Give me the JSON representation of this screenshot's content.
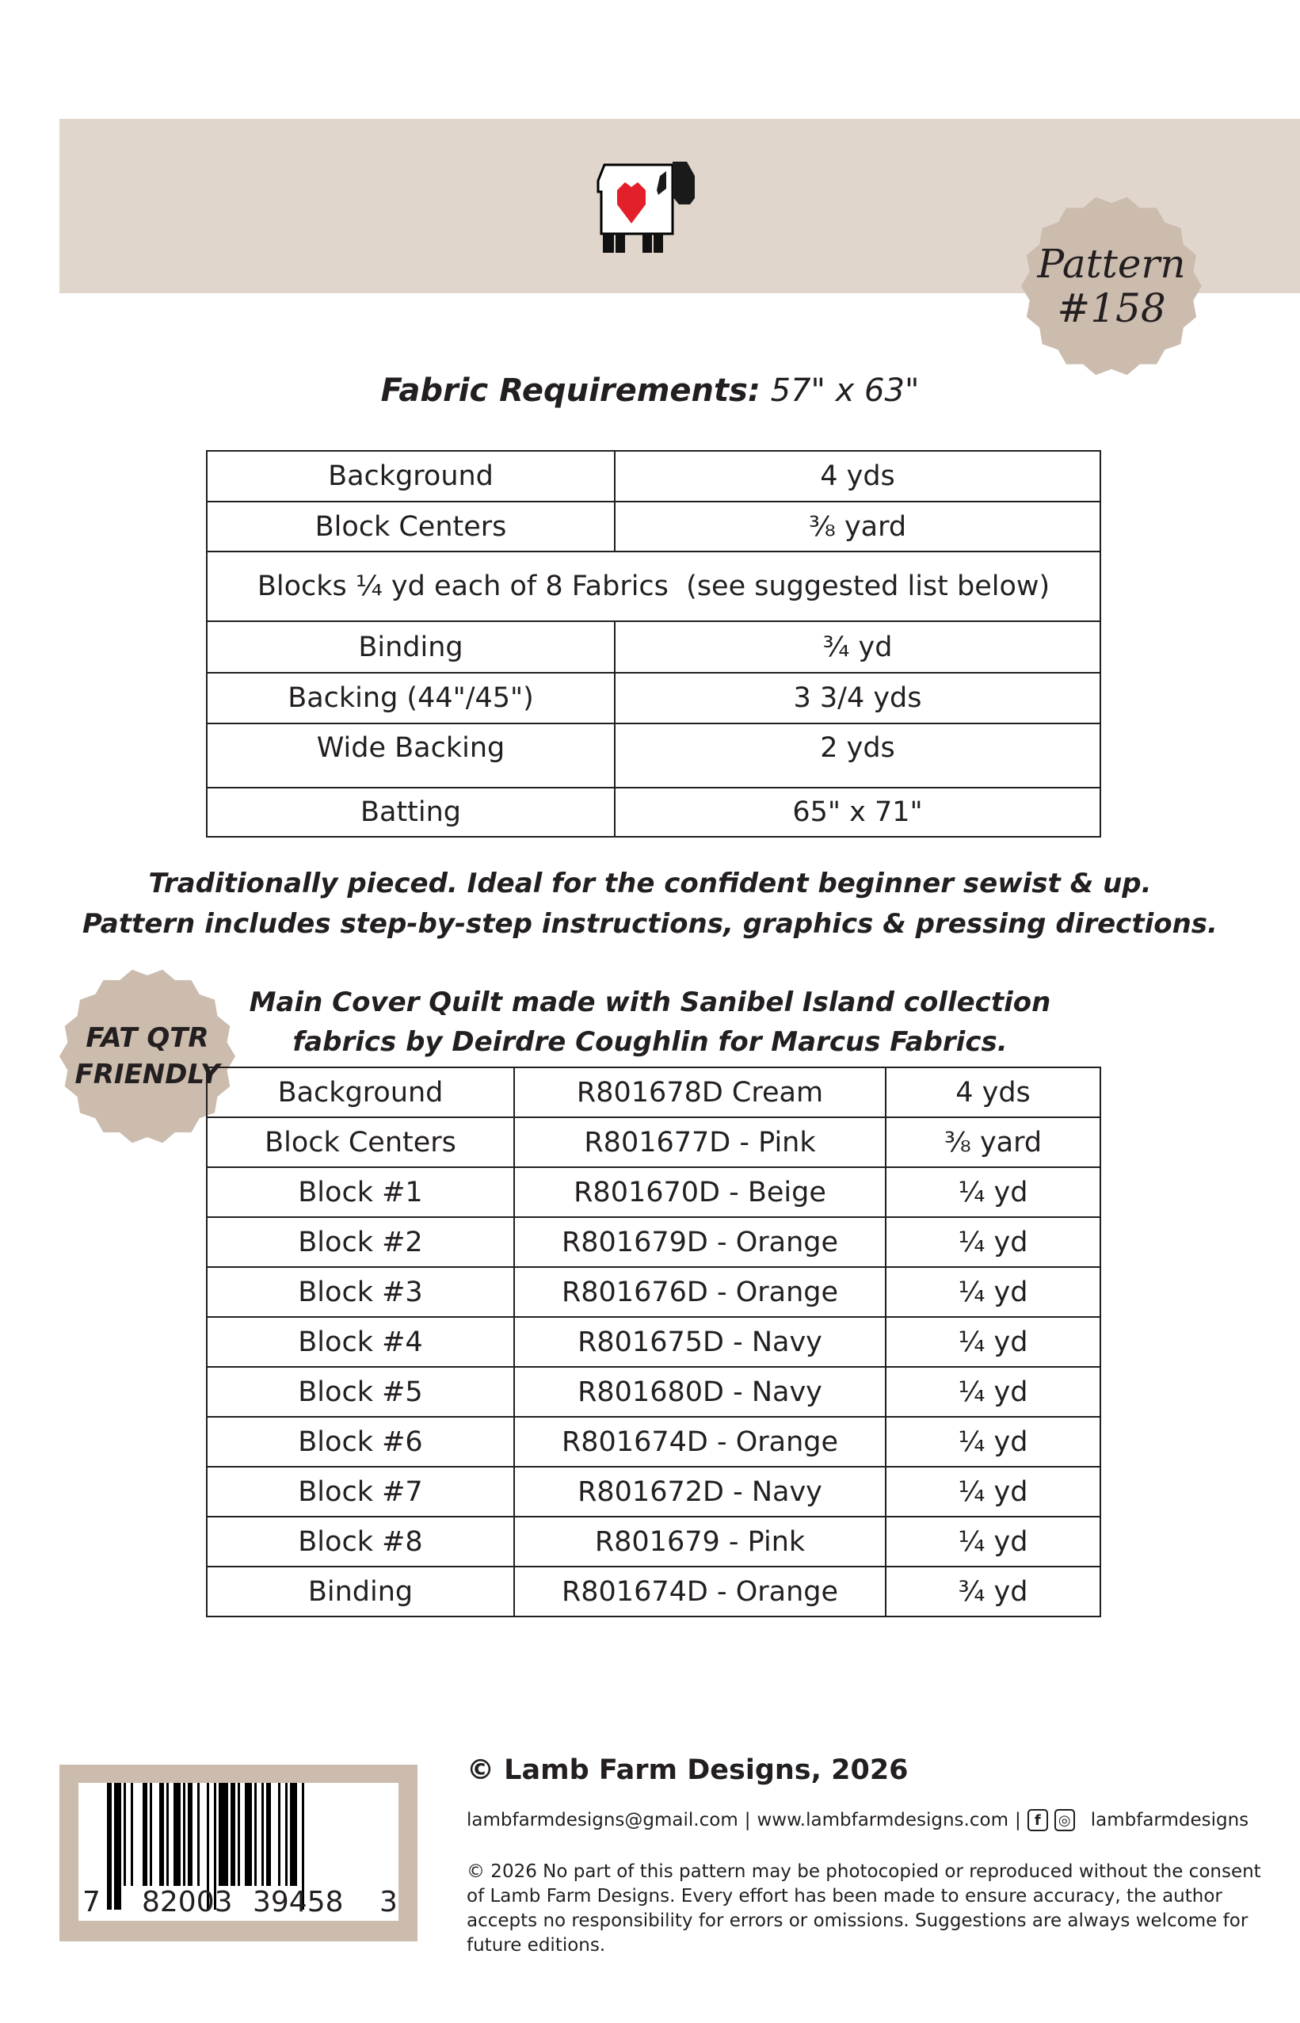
{
  "header": {
    "logo": "lamb-heart-logo",
    "badge_line1": "Pattern",
    "badge_line2": "#158"
  },
  "title": {
    "label": "Fabric Requirements:",
    "size": "57\" x 63\""
  },
  "requirements": [
    [
      "Background",
      "4 yds"
    ],
    [
      "Block Centers",
      "⅜ yard"
    ],
    [
      "Blocks ¼ yd each of 8 Fabrics  (see suggested list below)"
    ],
    [
      "Binding",
      "¾ yd"
    ],
    [
      "Backing (44\"/45\")",
      "3 3/4 yds"
    ],
    [
      "Wide Backing",
      "2 yds"
    ],
    [
      "Batting",
      "65\" x 71\""
    ]
  ],
  "description": {
    "line1": "Traditionally pieced. Ideal for the confident beginner sewist & up.",
    "line2": "Pattern includes step-by-step instructions, graphics & pressing directions."
  },
  "fat_quarter_badge": {
    "line1": "FAT QTR",
    "line2": "FRIENDLY"
  },
  "collection_note": {
    "line1": "Main Cover Quilt made with Sanibel Island collection",
    "line2": "fabrics by Deirdre Coughlin for Marcus Fabrics."
  },
  "fabrics": [
    [
      "Background",
      "R801678D Cream",
      "4 yds"
    ],
    [
      "Block Centers",
      "R801677D - Pink",
      "⅜ yard"
    ],
    [
      "Block #1",
      "R801670D - Beige",
      "¼ yd"
    ],
    [
      "Block #2",
      "R801679D - Orange",
      "¼ yd"
    ],
    [
      "Block #3",
      "R801676D - Orange",
      "¼ yd"
    ],
    [
      "Block #4",
      "R801675D - Navy",
      "¼ yd"
    ],
    [
      "Block #5",
      "R801680D - Navy",
      "¼ yd"
    ],
    [
      "Block #6",
      "R801674D - Orange",
      "¼ yd"
    ],
    [
      "Block #7",
      "R801672D - Navy",
      "¼ yd"
    ],
    [
      "Block #8",
      "R801679 - Pink",
      "¼ yd"
    ],
    [
      "Binding",
      "R801674D - Orange",
      "¾ yd"
    ]
  ],
  "barcode": {
    "d1": "7",
    "d2": "82003",
    "d3": "39458",
    "d4": "3"
  },
  "footer": {
    "copyright": "© Lamb Farm Designs, 2026",
    "email": "lambfarmdesigns@gmail.com",
    "sep": "|",
    "website": "www.lambfarmdesigns.com",
    "social_handle": "lambfarmdesigns",
    "legal": "© 2026 No part of this pattern may be photocopied or reproduced without the consent of Lamb Farm Designs. Every effort has been made to ensure accuracy, the author accepts no responsibility for errors or omissions.  Suggestions are always welcome for future editions."
  },
  "colors": {
    "band": "#e0d6cc",
    "badge": "#ccbcae",
    "heart": "#e3202a"
  }
}
